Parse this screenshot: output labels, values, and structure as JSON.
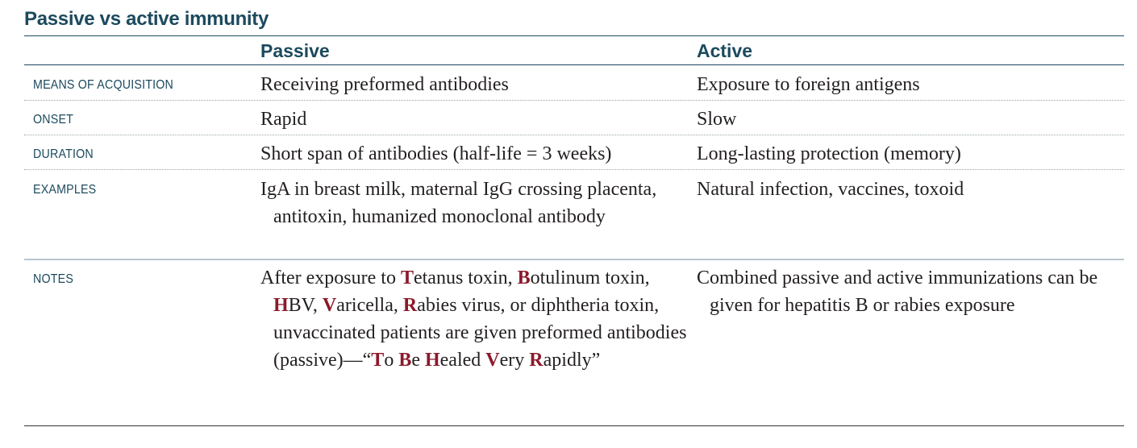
{
  "title": "Passive vs active immunity",
  "columns": {
    "passive": "Passive",
    "active": "Active"
  },
  "rows": [
    {
      "label": "MEANS OF ACQUISITION",
      "passive": "Receiving preformed antibodies",
      "active": "Exposure to foreign antigens"
    },
    {
      "label": "ONSET",
      "passive": "Rapid",
      "active": "Slow"
    },
    {
      "label": "DURATION",
      "passive": "Short span of antibodies (half-life = 3 weeks)",
      "active": "Long-lasting protection (memory)"
    },
    {
      "label": "EXAMPLES",
      "passive": "IgA in breast milk, maternal IgG crossing placenta, antitoxin, humanized monoclonal antibody",
      "active": "Natural infection, vaccines, toxoid"
    },
    {
      "label": "NOTES",
      "passive_parts": [
        {
          "t": "After exposure to "
        },
        {
          "t": "T",
          "m": true
        },
        {
          "t": "etanus toxin, "
        },
        {
          "t": "B",
          "m": true
        },
        {
          "t": "otulinum toxin, "
        },
        {
          "t": "H",
          "m": true
        },
        {
          "t": "BV, "
        },
        {
          "t": "V",
          "m": true
        },
        {
          "t": "aricella, "
        },
        {
          "t": "R",
          "m": true
        },
        {
          "t": "abies virus, or diphtheria toxin, unvaccinated patients are given preformed antibodies (passive)—“"
        },
        {
          "t": "T",
          "m": true
        },
        {
          "t": "o "
        },
        {
          "t": "B",
          "m": true
        },
        {
          "t": "e "
        },
        {
          "t": "H",
          "m": true
        },
        {
          "t": "ealed "
        },
        {
          "t": "V",
          "m": true
        },
        {
          "t": "ery "
        },
        {
          "t": "R",
          "m": true
        },
        {
          "t": "apidly”"
        }
      ],
      "active": "Combined passive and active immunizations can be given for hepatitis B or rabies exposure"
    }
  ],
  "colors": {
    "heading": "#1c4a5e",
    "mnemonic": "#8b1a2b",
    "text": "#231f20"
  }
}
